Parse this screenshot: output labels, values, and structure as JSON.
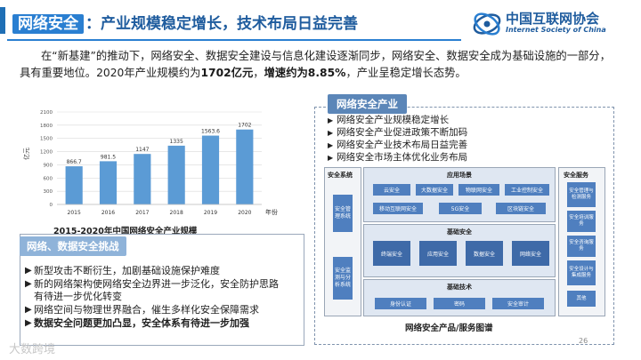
{
  "header": {
    "title_highlight": "网络安全",
    "title_rest": "：产业规模稳定增长，技术布局日益完善",
    "logo_cn": "中国互联网协会",
    "logo_en": "Internet Society of China"
  },
  "intro": {
    "part1": "在“新基建”的推动下，网络安全、数据安全建设与信息化建设逐渐同步，网络安全、数据安全成为基础设施的一部分，具有重要地位。2020年产业规模约为",
    "bold1": "1702亿元",
    "part2": "，",
    "bold2": "增速约为8.85%",
    "part3": "，产业呈稳定增长态势。"
  },
  "chart_data": {
    "type": "bar",
    "categories": [
      "2015",
      "2016",
      "2017",
      "2018",
      "2019",
      "2020"
    ],
    "values": [
      866.7,
      981.5,
      1147,
      1335,
      1563.6,
      1702
    ],
    "value_labels": [
      "866.7",
      "981.5",
      "1147",
      "1335",
      "1563.6",
      "1702"
    ],
    "ylabel": "亿元",
    "xlabel": "年份",
    "ylim": [
      0,
      2100
    ],
    "yticks": [
      "0",
      "300",
      "600",
      "900",
      "1200",
      "1500",
      "1800",
      "2100"
    ],
    "title": "2015-2020年中国网络安全产业规模",
    "grid": true,
    "bar_color": "#5b9bd5"
  },
  "challenges": {
    "header": "网络、数据安全挑战",
    "items": [
      {
        "text": "新型攻击不断衍生，加剧基础设施保护难度"
      },
      {
        "text": "新的网络架构使网络安全边界进一步泛化，安全防护思路有待进一步优化转变"
      },
      {
        "text": "网络空间与物理世界融合，催生多样化安全保障需求"
      },
      {
        "text": "数据安全问题更加凸显，安全体系有待进一步加强"
      }
    ]
  },
  "industry": {
    "header": "网络安全产业",
    "items": [
      "网络安全产业规模稳定增长",
      "网络安全产业促进政策不断加码",
      "网络安全产业技术布局日益完善",
      "网络安全市场主体优化业务布局"
    ]
  },
  "diagram": {
    "left_title": "安全系统",
    "left_tiles": [
      "安全管理系统",
      "安全监测与分析系统"
    ],
    "right_title": "安全服务",
    "right_tiles": [
      "安全管理与检测服务",
      "安全培训服务",
      "安全咨询服务",
      "安全设计与集成服务",
      "其他"
    ],
    "app_title": "应用场景",
    "app_tiles_row1": [
      "云安全",
      "大数据安全",
      "物联网安全",
      "工业控制安全"
    ],
    "app_tiles_row2": [
      "移动互联网安全",
      "5G安全",
      "区块链安全"
    ],
    "base_title": "基础安全",
    "base_tiles": [
      "终端安全",
      "应用安全",
      "数据安全",
      "网络安全"
    ],
    "tech_title": "基础技术",
    "tech_tiles": [
      "身份认证",
      "密码",
      "安全审计"
    ],
    "caption": "网络安全产品/服务图谱"
  },
  "footer": {
    "page_number": "26",
    "watermark": "大数跨境"
  }
}
